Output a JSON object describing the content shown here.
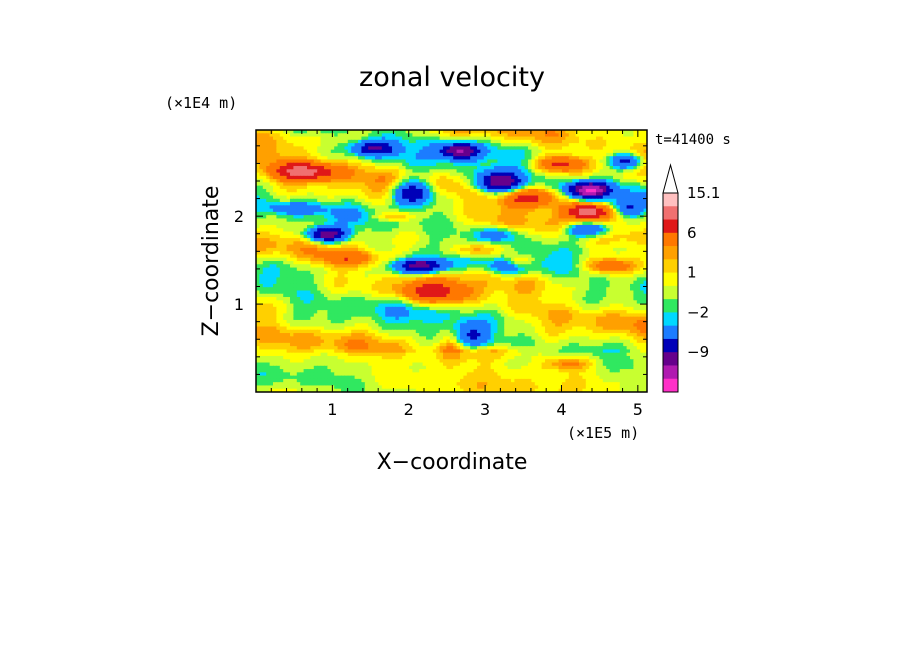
{
  "chart_data": {
    "type": "heatmap",
    "title": "zonal velocity",
    "time_label": "t=41400 s",
    "x_axis": {
      "label": "X−coordinate",
      "unit_label": "(×1E5 m)",
      "ticks": [
        1,
        2,
        3,
        4,
        5
      ],
      "range": [
        0,
        5.12
      ]
    },
    "y_axis": {
      "label": "Z−coordinate",
      "unit_label": "(×1E4 m)",
      "ticks": [
        1,
        2
      ],
      "range": [
        0,
        2.98
      ]
    },
    "colorbar": {
      "levels": [
        15.1,
        12,
        9,
        6,
        3,
        2,
        1,
        0,
        -1,
        -2,
        -3,
        -6,
        -9,
        -12,
        -15
      ],
      "colors": [
        "#ffc0c0",
        "#f07070",
        "#e01818",
        "#ff7800",
        "#ffa000",
        "#ffd000",
        "#ffff00",
        "#c8ff30",
        "#30e860",
        "#00d8ff",
        "#1c7cff",
        "#0000b8",
        "#66008c",
        "#b01ab0",
        "#ff30c8"
      ],
      "tick_labels": [
        {
          "value": 15.1,
          "text": "15.1"
        },
        {
          "value": 6,
          "text": "6"
        },
        {
          "value": 1,
          "text": "1"
        },
        {
          "value": -2,
          "text": "−2"
        },
        {
          "value": -9,
          "text": "−9"
        }
      ],
      "extend": "max"
    }
  }
}
